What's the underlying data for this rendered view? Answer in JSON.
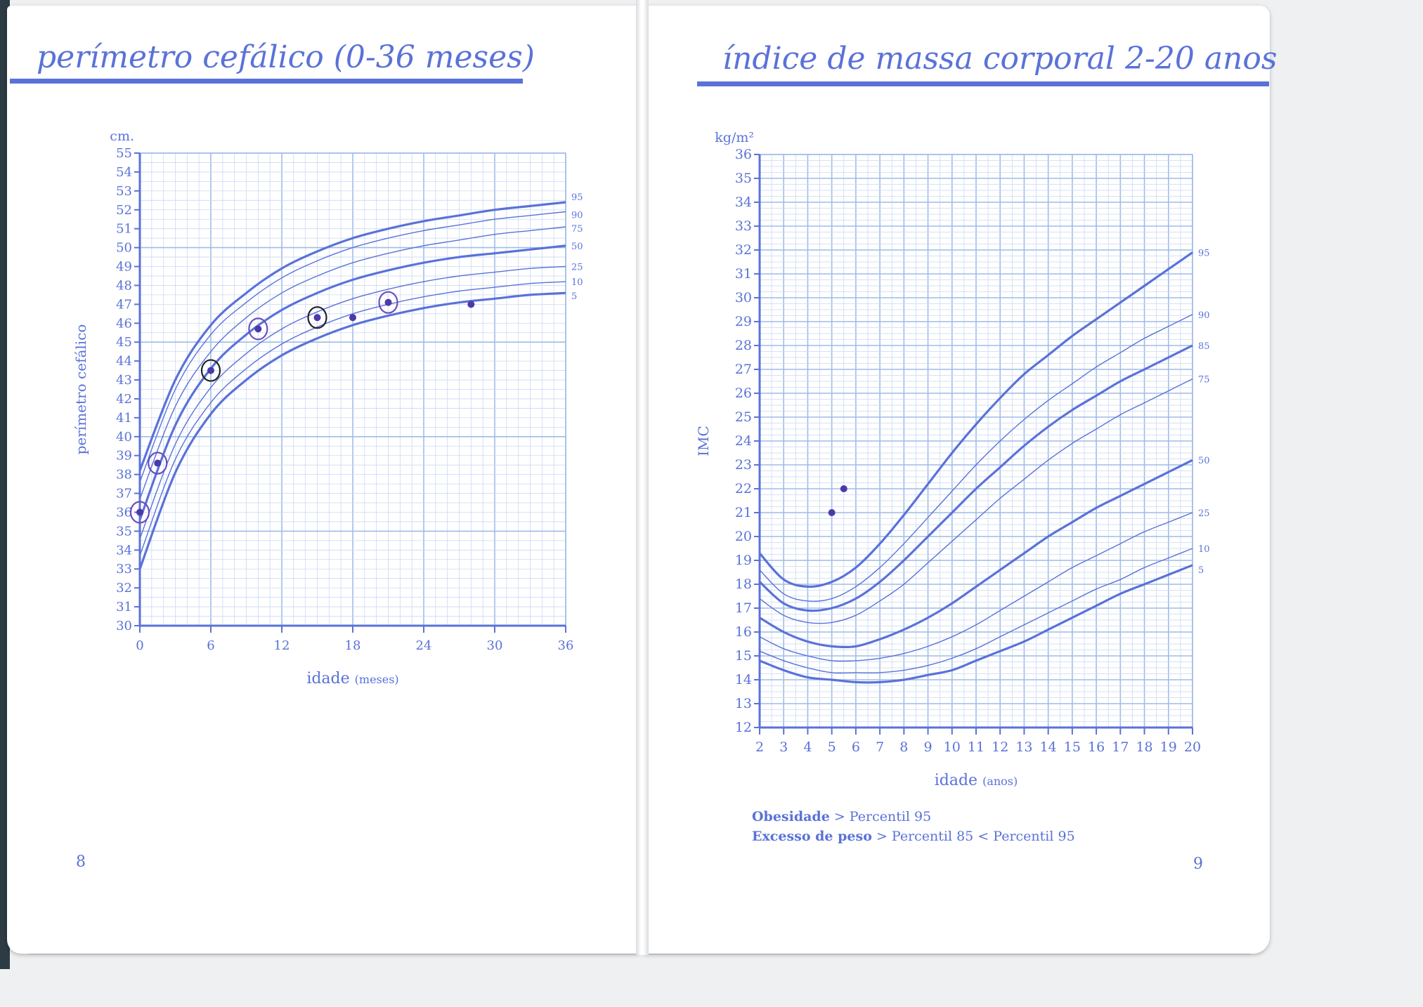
{
  "colors": {
    "accent": "#5a72d8",
    "grid": "#c9d9f3",
    "grid_major": "#9fbce9",
    "curve": "#5a72d8"
  },
  "left_page": {
    "title": "perímetro cefálico (0-36 meses)",
    "page_number": "8"
  },
  "right_page": {
    "title": "índice de massa corporal 2-20 anos",
    "page_number": "9",
    "legend": [
      {
        "bold": "Obesidade",
        "text": " > Percentil 95"
      },
      {
        "bold": "Excesso de peso",
        "text": " > Percentil 85 < Percentil 95"
      }
    ]
  },
  "chart_data": [
    {
      "type": "line",
      "title": "perímetro cefálico (0-36 meses)",
      "unit_label": "cm.",
      "ylabel": "perímetro cefálico",
      "xlabel": "idade",
      "xlabel_unit": "(meses)",
      "xlim": [
        0,
        36
      ],
      "ylim": [
        30,
        55
      ],
      "xticks": [
        0,
        6,
        12,
        18,
        24,
        30,
        36
      ],
      "yticks": [
        30,
        31,
        32,
        33,
        34,
        35,
        36,
        37,
        38,
        39,
        40,
        41,
        42,
        43,
        44,
        45,
        46,
        47,
        48,
        49,
        50,
        51,
        52,
        53,
        54,
        55
      ],
      "grid": true,
      "x": [
        0,
        3,
        6,
        9,
        12,
        15,
        18,
        21,
        24,
        27,
        30,
        33,
        36
      ],
      "series": [
        {
          "name": "95",
          "values": [
            38.2,
            43.0,
            45.9,
            47.6,
            48.9,
            49.8,
            50.5,
            51.0,
            51.4,
            51.7,
            52.0,
            52.2,
            52.4
          ]
        },
        {
          "name": "90",
          "values": [
            37.6,
            42.5,
            45.4,
            47.1,
            48.4,
            49.3,
            50.0,
            50.5,
            50.9,
            51.2,
            51.5,
            51.7,
            51.9
          ]
        },
        {
          "name": "75",
          "values": [
            36.7,
            41.6,
            44.5,
            46.3,
            47.6,
            48.5,
            49.2,
            49.7,
            50.1,
            50.4,
            50.7,
            50.9,
            51.1
          ]
        },
        {
          "name": "50",
          "values": [
            35.6,
            40.6,
            43.6,
            45.4,
            46.7,
            47.6,
            48.3,
            48.8,
            49.2,
            49.5,
            49.7,
            49.9,
            50.1
          ]
        },
        {
          "name": "25",
          "values": [
            34.6,
            39.6,
            42.6,
            44.4,
            45.7,
            46.6,
            47.3,
            47.8,
            48.2,
            48.5,
            48.7,
            48.9,
            49.0
          ]
        },
        {
          "name": "10",
          "values": [
            33.7,
            38.8,
            41.8,
            43.6,
            44.9,
            45.8,
            46.5,
            47.0,
            47.4,
            47.7,
            47.9,
            48.1,
            48.2
          ]
        },
        {
          "name": "5",
          "values": [
            33.0,
            38.1,
            41.2,
            43.0,
            44.3,
            45.2,
            45.9,
            46.4,
            46.8,
            47.1,
            47.3,
            47.5,
            47.6
          ]
        }
      ],
      "points": [
        {
          "x": 0,
          "y": 36.0
        },
        {
          "x": 1.5,
          "y": 38.6
        },
        {
          "x": 6,
          "y": 43.5
        },
        {
          "x": 10,
          "y": 45.7
        },
        {
          "x": 15,
          "y": 46.3
        },
        {
          "x": 18,
          "y": 46.3
        },
        {
          "x": 21,
          "y": 47.1
        },
        {
          "x": 28,
          "y": 47.0
        }
      ]
    },
    {
      "type": "line",
      "title": "índice de massa corporal 2-20 anos",
      "unit_label": "kg/m²",
      "ylabel": "IMC",
      "xlabel": "idade",
      "xlabel_unit": "(anos)",
      "xlim": [
        2,
        20
      ],
      "ylim": [
        12,
        36
      ],
      "xticks": [
        2,
        3,
        4,
        5,
        6,
        7,
        8,
        9,
        10,
        11,
        12,
        13,
        14,
        15,
        16,
        17,
        18,
        19,
        20
      ],
      "yticks": [
        12,
        13,
        14,
        15,
        16,
        17,
        18,
        19,
        20,
        21,
        22,
        23,
        24,
        25,
        26,
        27,
        28,
        29,
        30,
        31,
        32,
        33,
        34,
        35,
        36
      ],
      "grid": true,
      "x": [
        2,
        3,
        4,
        5,
        6,
        7,
        8,
        9,
        10,
        11,
        12,
        13,
        14,
        15,
        16,
        17,
        18,
        19,
        20
      ],
      "series": [
        {
          "name": "95",
          "values": [
            19.3,
            18.2,
            17.9,
            18.1,
            18.7,
            19.7,
            20.9,
            22.2,
            23.5,
            24.7,
            25.8,
            26.8,
            27.6,
            28.4,
            29.1,
            29.8,
            30.5,
            31.2,
            31.9
          ]
        },
        {
          "name": "90",
          "values": [
            18.6,
            17.6,
            17.3,
            17.4,
            17.9,
            18.7,
            19.7,
            20.8,
            21.9,
            23.0,
            24.0,
            24.9,
            25.7,
            26.4,
            27.1,
            27.7,
            28.3,
            28.8,
            29.3
          ]
        },
        {
          "name": "85",
          "values": [
            18.1,
            17.2,
            16.9,
            17.0,
            17.4,
            18.1,
            19.0,
            20.0,
            21.0,
            22.0,
            22.9,
            23.8,
            24.6,
            25.3,
            25.9,
            26.5,
            27.0,
            27.5,
            28.0
          ]
        },
        {
          "name": "75",
          "values": [
            17.4,
            16.7,
            16.4,
            16.4,
            16.7,
            17.3,
            18.0,
            18.9,
            19.8,
            20.7,
            21.6,
            22.4,
            23.2,
            23.9,
            24.5,
            25.1,
            25.6,
            26.1,
            26.6
          ]
        },
        {
          "name": "50",
          "values": [
            16.6,
            16.0,
            15.6,
            15.4,
            15.4,
            15.7,
            16.1,
            16.6,
            17.2,
            17.9,
            18.6,
            19.3,
            20.0,
            20.6,
            21.2,
            21.7,
            22.2,
            22.7,
            23.2
          ]
        },
        {
          "name": "25",
          "values": [
            15.8,
            15.3,
            15.0,
            14.8,
            14.8,
            14.9,
            15.1,
            15.4,
            15.8,
            16.3,
            16.9,
            17.5,
            18.1,
            18.7,
            19.2,
            19.7,
            20.2,
            20.6,
            21.0
          ]
        },
        {
          "name": "10",
          "values": [
            15.2,
            14.8,
            14.5,
            14.3,
            14.3,
            14.3,
            14.4,
            14.6,
            14.9,
            15.3,
            15.8,
            16.3,
            16.8,
            17.3,
            17.8,
            18.2,
            18.7,
            19.1,
            19.5
          ]
        },
        {
          "name": "5",
          "values": [
            14.8,
            14.4,
            14.1,
            14.0,
            13.9,
            13.9,
            14.0,
            14.2,
            14.4,
            14.8,
            15.2,
            15.6,
            16.1,
            16.6,
            17.1,
            17.6,
            18.0,
            18.4,
            18.8
          ]
        }
      ],
      "points": [
        {
          "x": 5,
          "y": 21.0
        },
        {
          "x": 5.5,
          "y": 22.0
        }
      ]
    }
  ]
}
